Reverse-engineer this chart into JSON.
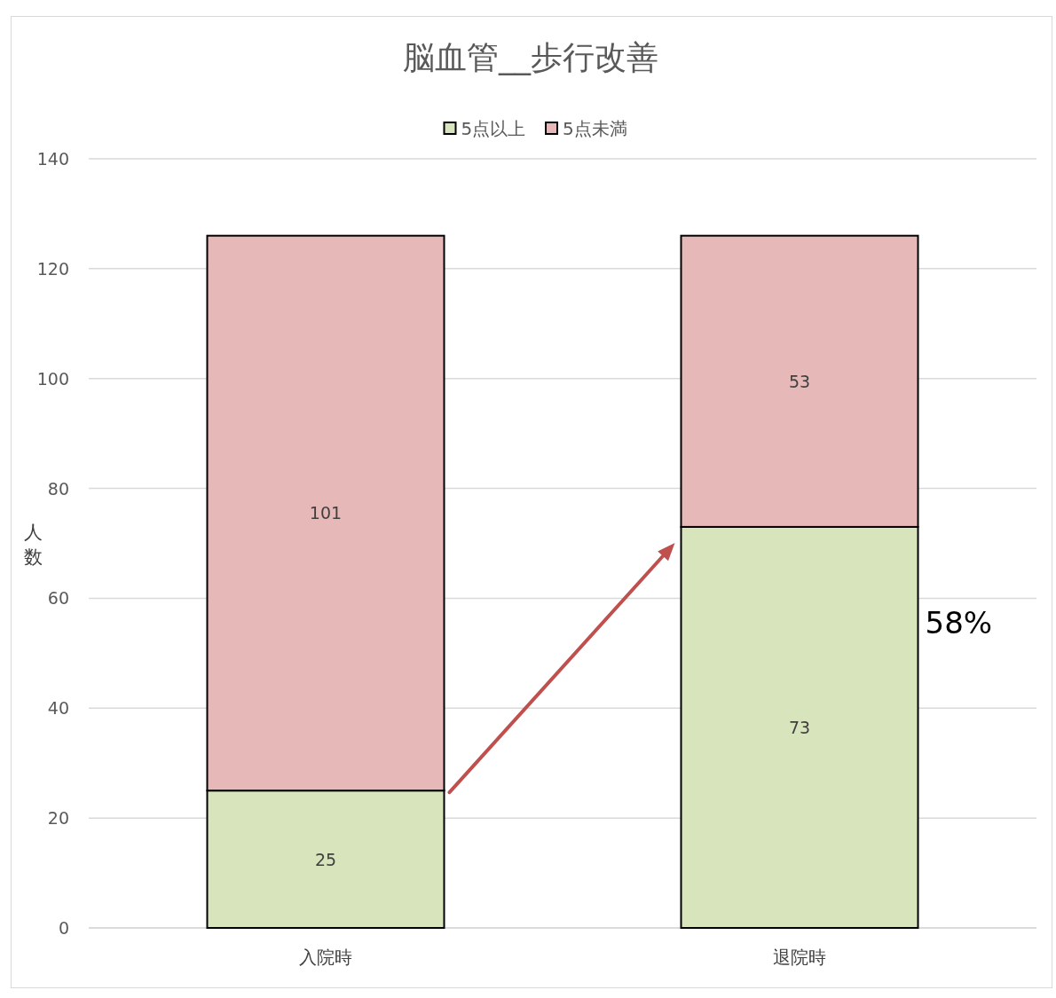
{
  "chart_data": {
    "type": "bar",
    "title": "脳血管__歩行改善",
    "ylabel": "人数",
    "categories": [
      "入院時",
      "退院時"
    ],
    "series": [
      {
        "name": "5点以上",
        "color": "#d8e4bc",
        "values": [
          25,
          73
        ]
      },
      {
        "name": "5点未満",
        "color": "#e6b8b7",
        "values": [
          101,
          53
        ]
      }
    ],
    "stacked": true,
    "data_labels": true,
    "ylim": [
      0,
      140
    ],
    "yticks": [
      0,
      20,
      40,
      60,
      80,
      100,
      120,
      140
    ],
    "grid": "y",
    "legend": "top",
    "annotations": [
      "58%"
    ]
  }
}
